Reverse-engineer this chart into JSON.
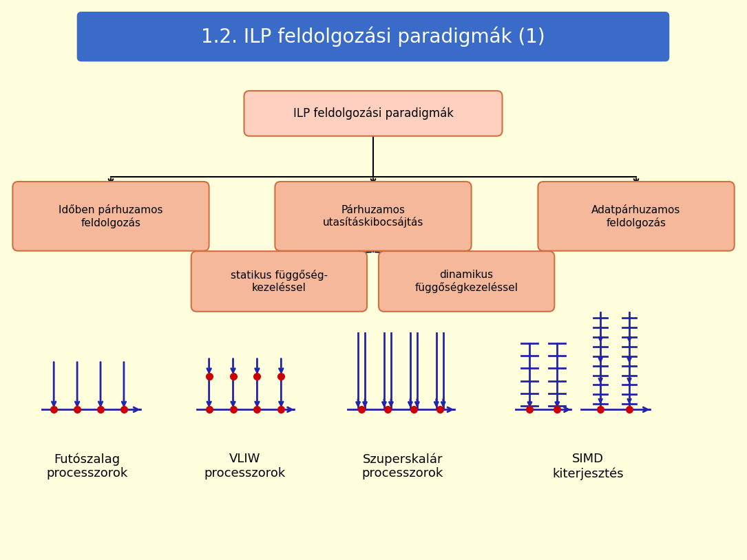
{
  "title": "1.2. ILP feldolgozási paradigmák (1)",
  "title_bg": "#3a6bc9",
  "title_fg": "#ffffff",
  "bg_color": "#ffffdd",
  "box_fill": "#f5b89a",
  "box_edge": "#d07040",
  "root_fill": "#ffd0c0",
  "root_edge": "#d07040",
  "root_text": "ILP feldolgozási paradigmák",
  "level1": [
    "Időben párhuzamos\nfeldolgozás",
    "Párhuzamos\nutasításkibocsájtás",
    "Adatpárhuzamos\nfeldolgozás"
  ],
  "level2_left": "statikus függőség-\nkezeléssel",
  "level2_right": "dinamikus\nfüggőségkezeléssel",
  "bottom_labels": [
    "Futószalag\nprocesszorok",
    "VLIW\nprocesszorok",
    "Szuperskalár\nprocesszorok",
    "SIMD\nkiterjesztés"
  ],
  "arrow_color": "#000000",
  "diagram_color": "#2222aa",
  "dot_color": "#cc0000"
}
